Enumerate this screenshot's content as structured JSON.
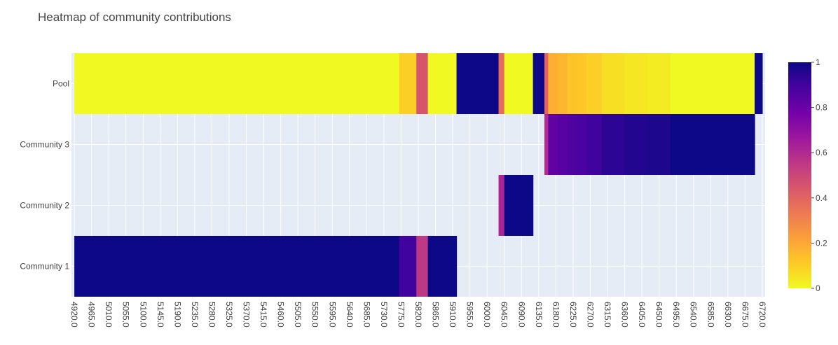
{
  "chart_data": {
    "type": "heatmap",
    "title": "Heatmap of community contributions",
    "colorscale_name": "Plasma (reversed)",
    "colorscale": [
      [
        0.0,
        "#f0f921"
      ],
      [
        0.111,
        "#fdca26"
      ],
      [
        0.222,
        "#fb9f3a"
      ],
      [
        0.333,
        "#ed7953"
      ],
      [
        0.444,
        "#d8576b"
      ],
      [
        0.556,
        "#bd3786"
      ],
      [
        0.667,
        "#9c179e"
      ],
      [
        0.778,
        "#7201a8"
      ],
      [
        0.889,
        "#46039f"
      ],
      [
        1.0,
        "#0d0887"
      ]
    ],
    "colorbar": {
      "range": [
        0,
        1
      ],
      "ticks": [
        "0",
        "0.2",
        "0.4",
        "0.6",
        "0.8",
        "1"
      ],
      "tick_values": [
        0,
        0.2,
        0.4,
        0.6,
        0.8,
        1
      ]
    },
    "plot_background": "#e5ecf6",
    "grid_color": "#ffffff",
    "x_range": [
      4920,
      6720
    ],
    "x_step": 15,
    "x_ticks": [
      "4920.0",
      "4965.0",
      "5010.0",
      "5055.0",
      "5100.0",
      "5145.0",
      "5190.0",
      "5235.0",
      "5280.0",
      "5325.0",
      "5370.0",
      "5415.0",
      "5460.0",
      "5505.0",
      "5550.0",
      "5595.0",
      "5640.0",
      "5685.0",
      "5730.0",
      "5775.0",
      "5820.0",
      "5865.0",
      "5910.0",
      "5955.0",
      "6000.0",
      "6045.0",
      "6090.0",
      "6135.0",
      "6180.0",
      "6225.0",
      "6270.0",
      "6315.0",
      "6360.0",
      "6405.0",
      "6450.0",
      "6495.0",
      "6540.0",
      "6585.0",
      "6630.0",
      "6675.0",
      "6720.0"
    ],
    "y_categories": [
      "Community 1",
      "Community 2",
      "Community 3",
      "Pool"
    ],
    "series": [
      {
        "name": "Community 1",
        "segments": [
          {
            "from": 4920,
            "to": 5770,
            "value": 1.0
          },
          {
            "from": 5770,
            "to": 5815,
            "value": 0.9
          },
          {
            "from": 5815,
            "to": 5845,
            "value": 0.55
          },
          {
            "from": 5845,
            "to": 5920,
            "value": 1.0
          }
        ]
      },
      {
        "name": "Community 2",
        "segments": [
          {
            "from": 6030,
            "to": 6045,
            "value": 0.62
          },
          {
            "from": 6045,
            "to": 6120,
            "value": 1.0
          }
        ]
      },
      {
        "name": "Community 3",
        "segments": [
          {
            "from": 6150,
            "to": 6160,
            "value": 0.6
          },
          {
            "from": 6160,
            "to": 6185,
            "value": 0.82
          },
          {
            "from": 6185,
            "to": 6210,
            "value": 0.84
          },
          {
            "from": 6210,
            "to": 6235,
            "value": 0.87
          },
          {
            "from": 6235,
            "to": 6260,
            "value": 0.88
          },
          {
            "from": 6260,
            "to": 6300,
            "value": 0.9
          },
          {
            "from": 6300,
            "to": 6360,
            "value": 0.94
          },
          {
            "from": 6360,
            "to": 6420,
            "value": 0.96
          },
          {
            "from": 6420,
            "to": 6480,
            "value": 0.97
          },
          {
            "from": 6480,
            "to": 6700,
            "value": 1.0
          }
        ]
      },
      {
        "name": "Pool",
        "segments": [
          {
            "from": 4920,
            "to": 5770,
            "value": 0.0
          },
          {
            "from": 5770,
            "to": 5815,
            "value": 0.1
          },
          {
            "from": 5815,
            "to": 5845,
            "value": 0.45
          },
          {
            "from": 5845,
            "to": 5920,
            "value": 0.0
          },
          {
            "from": 5920,
            "to": 6030,
            "value": 1.0
          },
          {
            "from": 6030,
            "to": 6045,
            "value": 0.38
          },
          {
            "from": 6045,
            "to": 6120,
            "value": 0.0
          },
          {
            "from": 6120,
            "to": 6150,
            "value": 1.0
          },
          {
            "from": 6150,
            "to": 6160,
            "value": 0.4
          },
          {
            "from": 6160,
            "to": 6185,
            "value": 0.18
          },
          {
            "from": 6185,
            "to": 6210,
            "value": 0.16
          },
          {
            "from": 6210,
            "to": 6235,
            "value": 0.13
          },
          {
            "from": 6235,
            "to": 6260,
            "value": 0.12
          },
          {
            "from": 6260,
            "to": 6300,
            "value": 0.1
          },
          {
            "from": 6300,
            "to": 6360,
            "value": 0.06
          },
          {
            "from": 6360,
            "to": 6420,
            "value": 0.04
          },
          {
            "from": 6420,
            "to": 6480,
            "value": 0.03
          },
          {
            "from": 6480,
            "to": 6700,
            "value": 0.0
          },
          {
            "from": 6700,
            "to": 6720,
            "value": 1.0
          }
        ]
      }
    ]
  }
}
